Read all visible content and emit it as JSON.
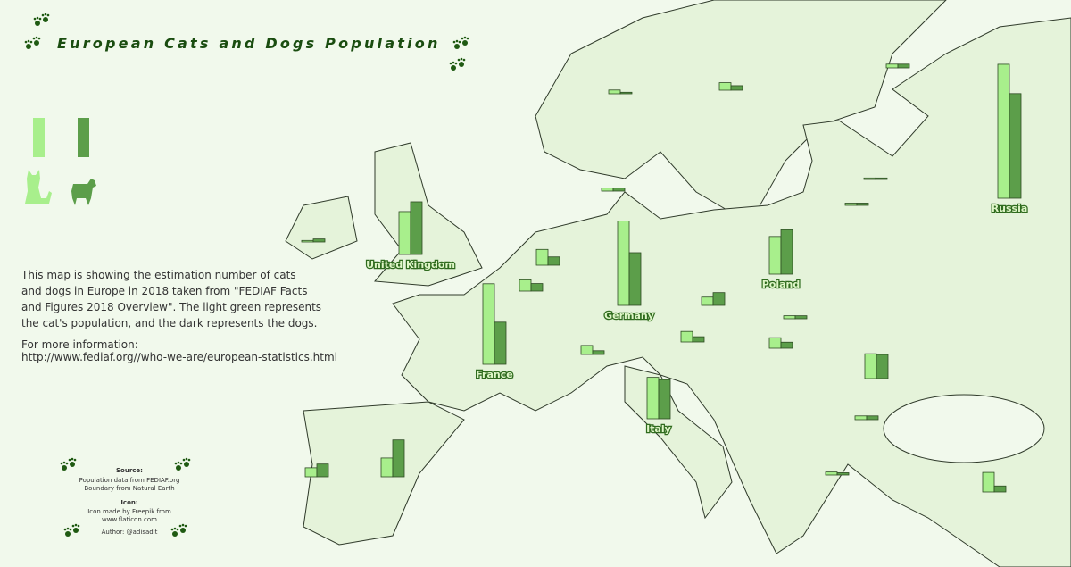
{
  "chart_data": {
    "type": "map-bar",
    "title": "European Cats and Dogs Population",
    "categories": [
      "Russia",
      "Germany",
      "France",
      "United Kingdom",
      "Italy",
      "Poland",
      null,
      null,
      null,
      null,
      null,
      null,
      null,
      null,
      null,
      null,
      null,
      null,
      null,
      null,
      null,
      null,
      null,
      null,
      null,
      null
    ],
    "series": [
      {
        "color": "#a8ef8c",
        "values": [
          17.8,
          11.2,
          10.7,
          5.7,
          5.5,
          5.0,
          2.5,
          3.3,
          1.2,
          2.1,
          1.5,
          1.1,
          1.4,
          1.4,
          1.2,
          2.6,
          1.0,
          0.5,
          0.5,
          0.4,
          0.2,
          0.4,
          0.3,
          0.2,
          0.5,
          0.4
        ]
      },
      {
        "color": "#5c9e4a",
        "values": [
          13.9,
          7.0,
          5.6,
          7.0,
          5.2,
          5.9,
          4.9,
          3.2,
          1.7,
          1.1,
          1.0,
          1.7,
          0.7,
          0.8,
          0.5,
          0.8,
          0.6,
          0.5,
          0.2,
          0.4,
          0.4,
          0.4,
          0.3,
          0.2,
          0.5,
          0.3
        ]
      }
    ]
  },
  "notes": {
    "description": [
      "This map is showing the estimation number of cats",
      "and dogs in Europe in 2018 taken from \"FEDIAF Facts",
      "and Figures 2018 Overview\". The light green represents",
      "the cat's population, and the dark represents the dogs."
    ],
    "more_info": "For more information:",
    "url": "http://www.fediaf.org//who-we-are/european-statistics.html",
    "source_title": "Source:",
    "source_lines": [
      "Population data from FEDIAF.org",
      "Boundary from Natural Earth"
    ],
    "icon_title": "Icon:",
    "icon_lines": [
      "Icon made by Freepik from",
      "www.flaticon.com"
    ],
    "author": "Author: @adisadit"
  }
}
